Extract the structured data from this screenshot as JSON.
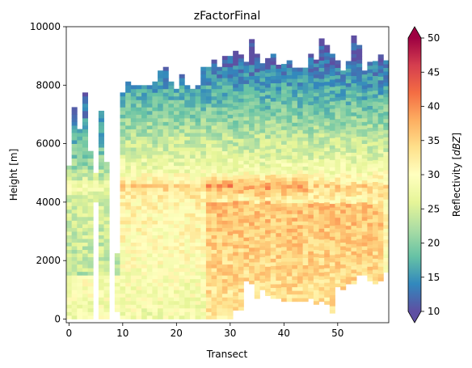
{
  "chart_data": {
    "type": "heatmap",
    "title": "zFactorFinal",
    "xlabel": "Transect",
    "ylabel": "Height [m]",
    "xlim": [
      -0.5,
      59.5
    ],
    "ylim": [
      -125,
      10000
    ],
    "xticks": [
      0,
      10,
      20,
      30,
      40,
      50
    ],
    "yticks": [
      0,
      2000,
      4000,
      6000,
      8000,
      10000
    ],
    "colorbar": {
      "label": "Reflectivity [dBZ]",
      "min": 10,
      "max": 50,
      "ticks": [
        10,
        15,
        20,
        25,
        30,
        35,
        40,
        45,
        50
      ],
      "extend": "both",
      "colormap": "Spectral_r",
      "colors": [
        "#5e4fa2",
        "#3288bd",
        "#66c2a5",
        "#abdda4",
        "#e6f598",
        "#ffffbf",
        "#fee08b",
        "#fdae61",
        "#f46d43",
        "#d53e4f",
        "#9e0142"
      ]
    },
    "grid": false,
    "cell_height_m": 125,
    "columns": {
      "x": [
        0,
        1,
        2,
        3,
        4,
        5,
        6,
        7,
        8,
        9,
        10,
        11,
        12,
        13,
        14,
        15,
        16,
        17,
        18,
        19,
        20,
        21,
        22,
        23,
        24,
        25,
        26,
        27,
        28,
        29,
        30,
        31,
        32,
        33,
        34,
        35,
        36,
        37,
        38,
        39,
        40,
        41,
        42,
        43,
        44,
        45,
        46,
        47,
        48,
        49,
        50,
        51,
        52,
        53,
        54,
        55,
        56,
        57,
        58,
        59
      ],
      "echo_top_m": [
        5200,
        7200,
        6500,
        7700,
        5700,
        5000,
        7100,
        5300,
        0,
        2200,
        7700,
        8100,
        8000,
        8000,
        7900,
        7900,
        8100,
        8500,
        8600,
        8100,
        7800,
        8300,
        8000,
        7800,
        8000,
        8600,
        8600,
        8800,
        8600,
        9000,
        8900,
        9100,
        9000,
        8700,
        9500,
        9000,
        8700,
        8900,
        9000,
        8600,
        8700,
        8800,
        8600,
        8600,
        8600,
        9000,
        8800,
        9500,
        9300,
        9000,
        8800,
        8500,
        8800,
        9700,
        9300,
        8500,
        8800,
        8800,
        9000,
        8800
      ],
      "echo_base_m": [
        0,
        0,
        0,
        0,
        0,
        0,
        0,
        0,
        0,
        0,
        0,
        0,
        0,
        0,
        0,
        0,
        0,
        0,
        0,
        0,
        0,
        0,
        0,
        0,
        0,
        0,
        0,
        0,
        0,
        0,
        0,
        300,
        300,
        1300,
        1200,
        700,
        1000,
        800,
        700,
        700,
        600,
        600,
        600,
        600,
        600,
        700,
        500,
        600,
        500,
        200,
        1100,
        1000,
        1200,
        1200,
        1500,
        1500,
        1300,
        1200,
        1300,
        1600
      ],
      "gaps": [
        {
          "x": 5,
          "from_m": 0,
          "to_m": 4000
        },
        {
          "x": 8,
          "from_m": 0,
          "to_m": 10000
        },
        {
          "x": 9,
          "from_m": 0,
          "to_m": 200
        },
        {
          "x": 9,
          "from_m": 2200,
          "to_m": 10000
        }
      ]
    },
    "profile_dbz": {
      "surface": 28,
      "melting_layer_m": 4600,
      "melting_layer_peak": 36,
      "upper_decay_per_km": 4.2,
      "bright_band_columns": [
        26,
        27,
        28,
        29,
        30,
        31,
        32,
        33,
        34,
        35,
        36,
        37,
        38,
        39,
        40,
        41,
        42,
        43,
        44
      ]
    }
  }
}
